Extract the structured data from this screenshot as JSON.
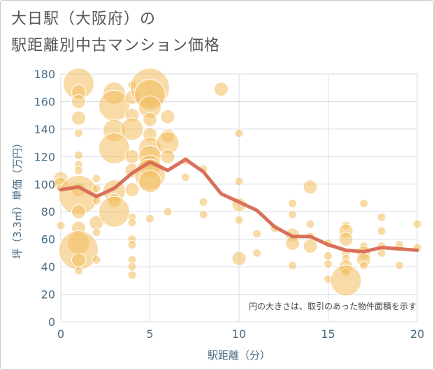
{
  "header": {
    "title_line_1": "大日駅（大阪府）の",
    "title_line_2": "駅距離別中古マンション価格"
  },
  "colors": {
    "bubble_fill": "#f3bd5e",
    "bubble_opacity": 0.55,
    "line": "#d9705a",
    "grid": "#d6dde5",
    "plot_background": "#ffffff",
    "axis_text": "#4a6d86"
  },
  "chart_data": {
    "type": "scatter",
    "xlabel": "駅距離（分）",
    "ylabel": "坪（3.3㎡）単価（万円）",
    "xlim": [
      0,
      20
    ],
    "ylim": [
      0,
      180
    ],
    "x_ticks": [
      0,
      5,
      10,
      15,
      20
    ],
    "y_ticks": [
      0,
      20,
      40,
      60,
      80,
      100,
      120,
      140,
      160,
      180
    ],
    "grid": true,
    "annotation": "円の大きさは、取引のあった物件面積を示す",
    "bubbles": [
      {
        "x": 0,
        "y": 104,
        "s": 2
      },
      {
        "x": 0,
        "y": 100,
        "s": 2
      },
      {
        "x": 0,
        "y": 97,
        "s": 1
      },
      {
        "x": 0,
        "y": 70,
        "s": 1
      },
      {
        "x": 1,
        "y": 173,
        "s": 4
      },
      {
        "x": 1,
        "y": 167,
        "s": 2
      },
      {
        "x": 1,
        "y": 160,
        "s": 2
      },
      {
        "x": 1,
        "y": 148,
        "s": 2
      },
      {
        "x": 1,
        "y": 137,
        "s": 1
      },
      {
        "x": 1,
        "y": 121,
        "s": 1
      },
      {
        "x": 1,
        "y": 114,
        "s": 1
      },
      {
        "x": 1,
        "y": 110,
        "s": 1
      },
      {
        "x": 1,
        "y": 96,
        "s": 2
      },
      {
        "x": 1,
        "y": 92,
        "s": 5
      },
      {
        "x": 1,
        "y": 80,
        "s": 2
      },
      {
        "x": 1,
        "y": 68,
        "s": 2
      },
      {
        "x": 1,
        "y": 57,
        "s": 3
      },
      {
        "x": 1,
        "y": 52,
        "s": 5
      },
      {
        "x": 1,
        "y": 45,
        "s": 2
      },
      {
        "x": 1,
        "y": 37,
        "s": 1
      },
      {
        "x": 2,
        "y": 104,
        "s": 1
      },
      {
        "x": 2,
        "y": 97,
        "s": 1
      },
      {
        "x": 2,
        "y": 88,
        "s": 1
      },
      {
        "x": 2,
        "y": 72,
        "s": 2
      },
      {
        "x": 2,
        "y": 65,
        "s": 1
      },
      {
        "x": 2,
        "y": 45,
        "s": 1
      },
      {
        "x": 3,
        "y": 166,
        "s": 3
      },
      {
        "x": 3,
        "y": 157,
        "s": 4
      },
      {
        "x": 3,
        "y": 139,
        "s": 3
      },
      {
        "x": 3,
        "y": 126,
        "s": 4
      },
      {
        "x": 3,
        "y": 95,
        "s": 3
      },
      {
        "x": 3,
        "y": 88,
        "s": 2
      },
      {
        "x": 3,
        "y": 80,
        "s": 4
      },
      {
        "x": 4,
        "y": 172,
        "s": 1
      },
      {
        "x": 4,
        "y": 163,
        "s": 2
      },
      {
        "x": 4,
        "y": 150,
        "s": 2
      },
      {
        "x": 4,
        "y": 140,
        "s": 3
      },
      {
        "x": 4,
        "y": 120,
        "s": 2
      },
      {
        "x": 4,
        "y": 110,
        "s": 2
      },
      {
        "x": 4,
        "y": 96,
        "s": 2
      },
      {
        "x": 4,
        "y": 76,
        "s": 1
      },
      {
        "x": 4,
        "y": 72,
        "s": 1
      },
      {
        "x": 4,
        "y": 60,
        "s": 1
      },
      {
        "x": 4,
        "y": 56,
        "s": 1
      },
      {
        "x": 4,
        "y": 45,
        "s": 1
      },
      {
        "x": 4,
        "y": 40,
        "s": 1
      },
      {
        "x": 4,
        "y": 34,
        "s": 1
      },
      {
        "x": 5,
        "y": 170,
        "s": 5
      },
      {
        "x": 5,
        "y": 165,
        "s": 4
      },
      {
        "x": 5,
        "y": 156,
        "s": 3
      },
      {
        "x": 5,
        "y": 147,
        "s": 2
      },
      {
        "x": 5,
        "y": 136,
        "s": 2
      },
      {
        "x": 5,
        "y": 126,
        "s": 3
      },
      {
        "x": 5,
        "y": 120,
        "s": 3
      },
      {
        "x": 5,
        "y": 113,
        "s": 3
      },
      {
        "x": 5,
        "y": 107,
        "s": 4
      },
      {
        "x": 5,
        "y": 102,
        "s": 3
      },
      {
        "x": 5,
        "y": 75,
        "s": 1
      },
      {
        "x": 6,
        "y": 149,
        "s": 2
      },
      {
        "x": 6,
        "y": 135,
        "s": 2
      },
      {
        "x": 6,
        "y": 130,
        "s": 3
      },
      {
        "x": 6,
        "y": 120,
        "s": 2
      },
      {
        "x": 6,
        "y": 80,
        "s": 1
      },
      {
        "x": 7,
        "y": 117,
        "s": 1
      },
      {
        "x": 7,
        "y": 105,
        "s": 1
      },
      {
        "x": 8,
        "y": 111,
        "s": 1
      },
      {
        "x": 8,
        "y": 87,
        "s": 1
      },
      {
        "x": 8,
        "y": 78,
        "s": 1
      },
      {
        "x": 9,
        "y": 169,
        "s": 2
      },
      {
        "x": 10,
        "y": 137,
        "s": 1
      },
      {
        "x": 10,
        "y": 102,
        "s": 1
      },
      {
        "x": 10,
        "y": 85,
        "s": 2
      },
      {
        "x": 10,
        "y": 74,
        "s": 1
      },
      {
        "x": 10,
        "y": 46,
        "s": 2
      },
      {
        "x": 11,
        "y": 64,
        "s": 1
      },
      {
        "x": 11,
        "y": 50,
        "s": 1
      },
      {
        "x": 12,
        "y": 68,
        "s": 1
      },
      {
        "x": 13,
        "y": 86,
        "s": 1
      },
      {
        "x": 13,
        "y": 78,
        "s": 1
      },
      {
        "x": 13,
        "y": 63,
        "s": 2
      },
      {
        "x": 13,
        "y": 57,
        "s": 2
      },
      {
        "x": 13,
        "y": 41,
        "s": 1
      },
      {
        "x": 14,
        "y": 98,
        "s": 2
      },
      {
        "x": 14,
        "y": 71,
        "s": 1
      },
      {
        "x": 14,
        "y": 62,
        "s": 1
      },
      {
        "x": 14,
        "y": 55,
        "s": 2
      },
      {
        "x": 15,
        "y": 57,
        "s": 1
      },
      {
        "x": 15,
        "y": 48,
        "s": 1
      },
      {
        "x": 15,
        "y": 42,
        "s": 1
      },
      {
        "x": 15,
        "y": 31,
        "s": 1
      },
      {
        "x": 16,
        "y": 70,
        "s": 1
      },
      {
        "x": 16,
        "y": 66,
        "s": 2
      },
      {
        "x": 16,
        "y": 60,
        "s": 2
      },
      {
        "x": 16,
        "y": 50,
        "s": 1
      },
      {
        "x": 16,
        "y": 46,
        "s": 1
      },
      {
        "x": 16,
        "y": 40,
        "s": 2
      },
      {
        "x": 16,
        "y": 36,
        "s": 1
      },
      {
        "x": 16,
        "y": 30,
        "s": 4
      },
      {
        "x": 17,
        "y": 86,
        "s": 1
      },
      {
        "x": 17,
        "y": 55,
        "s": 1
      },
      {
        "x": 17,
        "y": 50,
        "s": 2
      },
      {
        "x": 17,
        "y": 45,
        "s": 2
      },
      {
        "x": 17,
        "y": 41,
        "s": 1
      },
      {
        "x": 18,
        "y": 76,
        "s": 1
      },
      {
        "x": 18,
        "y": 66,
        "s": 1
      },
      {
        "x": 18,
        "y": 55,
        "s": 1
      },
      {
        "x": 18,
        "y": 50,
        "s": 1
      },
      {
        "x": 19,
        "y": 56,
        "s": 1
      },
      {
        "x": 19,
        "y": 41,
        "s": 1
      },
      {
        "x": 20,
        "y": 71,
        "s": 1
      },
      {
        "x": 20,
        "y": 54,
        "s": 1
      }
    ],
    "trend_line": {
      "x": [
        0,
        1,
        2,
        3,
        4,
        5,
        6,
        7,
        8,
        9,
        10,
        11,
        12,
        13,
        14,
        15,
        16,
        17,
        18,
        19,
        20
      ],
      "y": [
        96,
        98,
        91,
        97,
        108,
        116,
        110,
        118,
        109,
        93,
        87,
        81,
        69,
        62,
        62,
        56,
        52,
        51,
        54,
        53,
        52
      ]
    }
  }
}
